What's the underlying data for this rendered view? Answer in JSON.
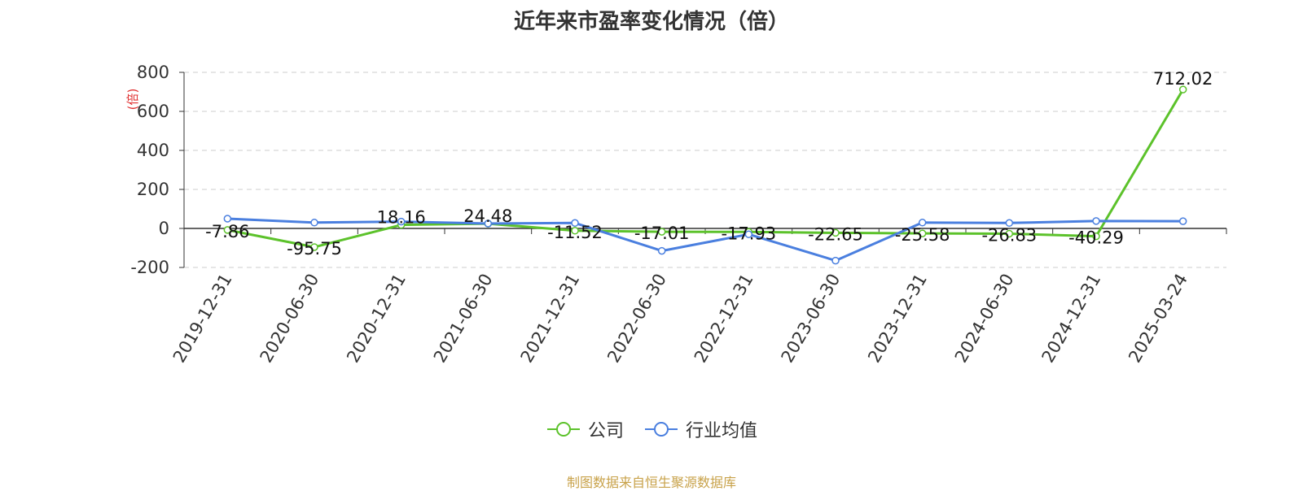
{
  "title": "近年来市盈率变化情况（倍）",
  "source": "制图数据来自恒生聚源数据库",
  "colors": {
    "company": "#5cc22b",
    "industry": "#4a7fdf",
    "ylabel": "#e03030",
    "grid": "#cccccc",
    "axis": "#333333"
  },
  "chart_data": {
    "type": "line",
    "title": "近年来市盈率变化情况（倍）",
    "ylabel": "(倍)",
    "ylim": [
      -200,
      800
    ],
    "yticks": [
      -200,
      0,
      200,
      400,
      600,
      800
    ],
    "grid": true,
    "legend_position": "bottom",
    "categories": [
      "2019-12-31",
      "2020-06-30",
      "2020-12-31",
      "2021-06-30",
      "2021-12-31",
      "2022-06-30",
      "2022-12-31",
      "2023-06-30",
      "2023-12-31",
      "2024-06-30",
      "2024-12-31",
      "2025-03-24"
    ],
    "series": [
      {
        "name": "公司",
        "values": [
          -7.86,
          -95.75,
          18.16,
          24.48,
          -11.52,
          -17.01,
          -17.93,
          -22.65,
          -25.58,
          -26.83,
          -40.29,
          712.02
        ],
        "labels": [
          "-7.86",
          "-95.75",
          "18.16",
          "24.48",
          "-11.52",
          "-17.01",
          "-17.93",
          "-22.65",
          "-25.58",
          "-26.83",
          "-40.29",
          "712.02"
        ]
      },
      {
        "name": "行业均值",
        "values": [
          50,
          30,
          35,
          25,
          28,
          -115,
          -30,
          -165,
          30,
          28,
          38,
          37
        ]
      }
    ]
  }
}
